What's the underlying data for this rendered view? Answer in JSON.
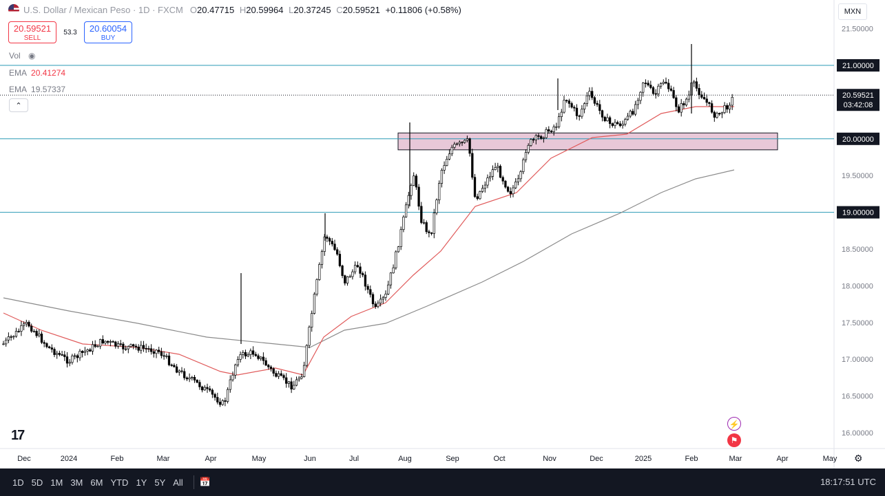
{
  "header": {
    "symbol_title": "U.S. Dollar / Mexican Peso · 1D · FXCM",
    "o_label": "O",
    "o_value": "20.47715",
    "h_label": "H",
    "h_value": "20.59964",
    "l_label": "L",
    "l_value": "20.37245",
    "c_label": "C",
    "c_value": "20.59521",
    "change": "+0.11806 (+0.58%)"
  },
  "trade": {
    "sell_price": "20.59521",
    "sell_label": "SELL",
    "spread": "53.3",
    "buy_price": "20.60054",
    "buy_label": "BUY"
  },
  "indicators": {
    "vol_label": "Vol",
    "ema1_label": "EMA",
    "ema1_value": "20.41274",
    "ema2_label": "EMA",
    "ema2_value": "19.57337"
  },
  "currency": "MXN",
  "colors": {
    "ema_fast": "#e05a5a",
    "ema_slow": "#8a8a8a",
    "hline": "#2a9ab5",
    "zone_fill": "#e8c8d8",
    "candle": "#000000"
  },
  "chart_data": {
    "type": "candlestick",
    "y_ticks": [
      "21.50000",
      "21.00000",
      "20.50000",
      "20.00000",
      "19.50000",
      "19.00000",
      "18.50000",
      "18.00000",
      "17.50000",
      "17.00000",
      "16.50000",
      "16.00000"
    ],
    "x_ticks": [
      "Dec",
      "2024",
      "Feb",
      "Mar",
      "Apr",
      "May",
      "Jun",
      "Jul",
      "Aug",
      "Sep",
      "Oct",
      "Nov",
      "Dec",
      "2025",
      "Feb",
      "Mar",
      "Apr",
      "May"
    ],
    "horizontal_lines": [
      21.0,
      20.0,
      19.0
    ],
    "highlight_levels": [
      "21.00000",
      "20.00000",
      "19.00000"
    ],
    "current_price": "20.59521",
    "countdown": "03:42:08",
    "zone": {
      "from": 19.85,
      "to": 20.08,
      "start": "Aug",
      "end": "Mar"
    },
    "ema_fast_last": 20.41274,
    "ema_slow_last": 19.57337
  },
  "timeframes": [
    "1D",
    "5D",
    "1M",
    "3M",
    "6M",
    "YTD",
    "1Y",
    "5Y",
    "All"
  ],
  "clock": "18:17:51 UTC",
  "logo_text": "17"
}
